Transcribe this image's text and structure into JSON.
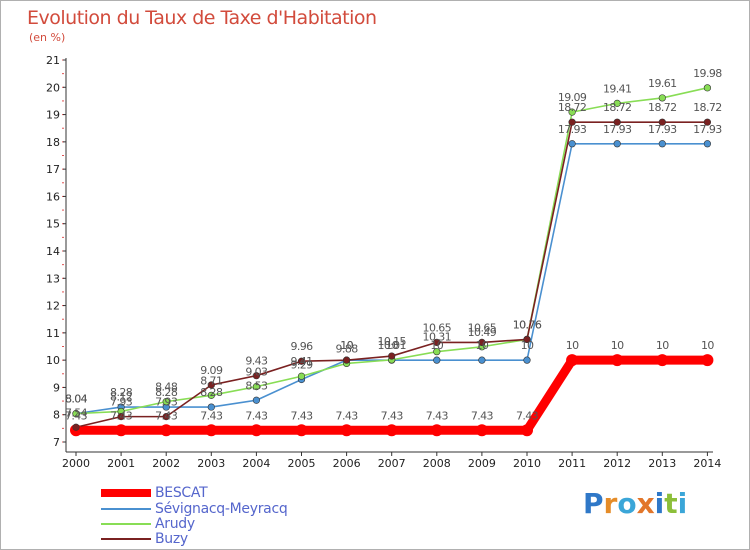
{
  "title": "Evolution du Taux de Taxe d'Habitation",
  "subtitle": "(en %)",
  "logo": [
    "P",
    "r",
    "o",
    "x",
    "i",
    "t",
    "i"
  ],
  "chart_data": {
    "type": "line",
    "categories": [
      "2000",
      "2001",
      "2002",
      "2003",
      "2004",
      "2005",
      "2006",
      "2007",
      "2008",
      "2009",
      "2010",
      "2011",
      "2012",
      "2013",
      "2014"
    ],
    "ylim": [
      7,
      21
    ],
    "yticks": [
      7,
      8,
      9,
      10,
      11,
      12,
      13,
      14,
      15,
      16,
      17,
      18,
      19,
      20,
      21
    ],
    "grid": false,
    "series": [
      {
        "name": "BESCAT",
        "color": "#ff0000",
        "values": [
          7.43,
          7.43,
          7.43,
          7.43,
          7.43,
          7.43,
          7.43,
          7.43,
          7.43,
          7.43,
          7.43,
          10,
          10,
          10,
          10
        ],
        "labels": [
          "7.43",
          "7.43",
          "7.43",
          "7.43",
          "7.43",
          "7.43",
          "7.43",
          "7.43",
          "7.43",
          "7.43",
          "7.43",
          "10",
          "10",
          "10",
          "10"
        ]
      },
      {
        "name": "Sévignacq-Meyracq",
        "color": "#4a90d0",
        "values": [
          8.04,
          8.28,
          8.28,
          8.28,
          8.53,
          9.29,
          10,
          10,
          10,
          10,
          10,
          17.93,
          17.93,
          17.93,
          17.93
        ],
        "labels": [
          "8.04",
          "8.28",
          "8.28",
          "8.28",
          "8.53",
          "9.29",
          "10",
          "10",
          "10",
          "10",
          "10",
          "17.93",
          "17.93",
          "17.93",
          "17.93"
        ]
      },
      {
        "name": "Arudy",
        "color": "#88dd55",
        "values": [
          8.04,
          8.12,
          8.48,
          8.71,
          9.03,
          9.41,
          9.88,
          10.01,
          10.31,
          10.49,
          10.76,
          19.09,
          19.41,
          19.61,
          19.98
        ],
        "labels": [
          "8.04",
          "8.12",
          "8.48",
          "8.71",
          "9.03",
          "9.41",
          "9.88",
          "10.01",
          "10.31",
          "10.49",
          "10.76",
          "19.09",
          "19.41",
          "19.61",
          "19.98"
        ]
      },
      {
        "name": "Buzy",
        "color": "#7a2121",
        "values": [
          7.54,
          7.93,
          7.93,
          9.09,
          9.43,
          9.96,
          10,
          10.15,
          10.65,
          10.65,
          10.76,
          18.72,
          18.72,
          18.72,
          18.72
        ],
        "labels": [
          "7.54",
          "7.93",
          "7.93",
          "9.09",
          "9.43",
          "9.96",
          "10",
          "10.15",
          "10.65",
          "10.65",
          "10.76",
          "18.72",
          "18.72",
          "18.72",
          "18.72"
        ]
      }
    ]
  }
}
